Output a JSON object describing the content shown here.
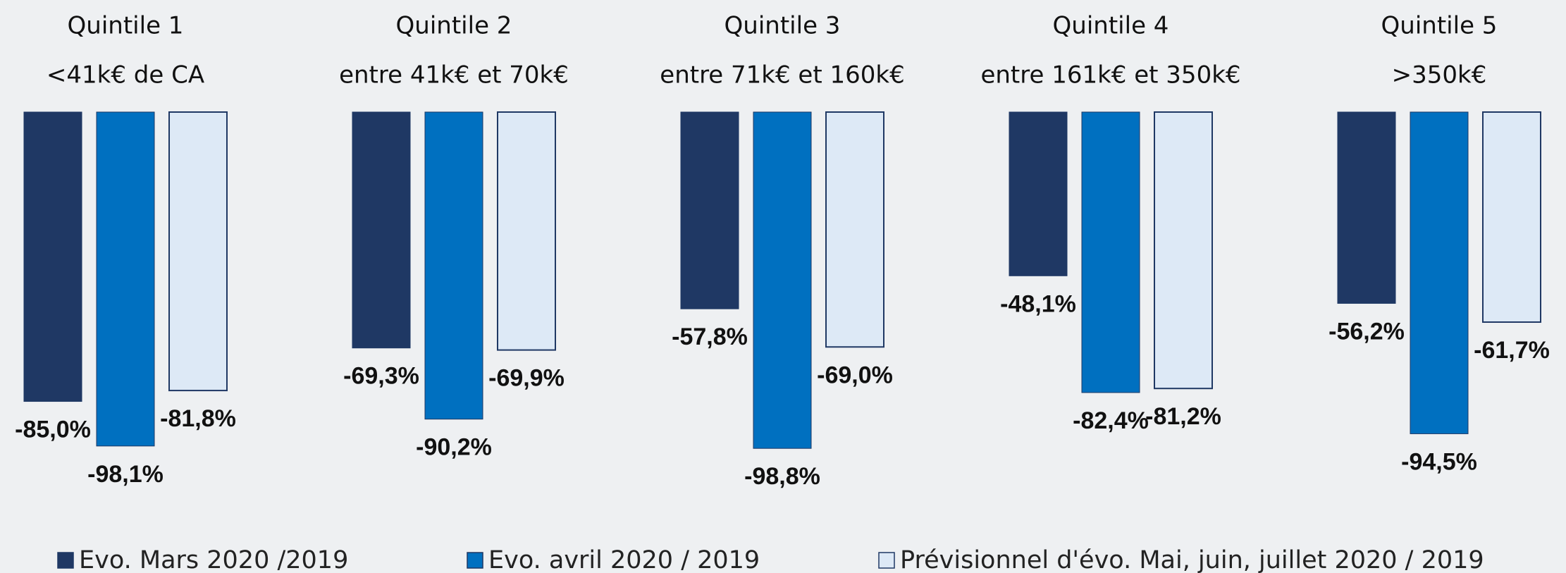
{
  "chart_data": {
    "type": "bar",
    "categories": [
      "Quintile 1",
      "Quintile 2",
      "Quintile 3",
      "Quintile 4",
      "Quintile 5"
    ],
    "category_ranges": [
      "<41k€ de CA",
      "entre 41k€  et 70k€",
      "entre 71k€ et 160k€",
      "entre 161k€ et 350k€",
      ">350k€"
    ],
    "ylim": [
      -100,
      0
    ],
    "series": [
      {
        "name": "Evo. Mars 2020 /2019",
        "color": "#1f3864",
        "values": [
          -85.0,
          -69.3,
          -57.8,
          -48.1,
          -56.2
        ],
        "value_labels": [
          "-85,0%",
          "-69,3%",
          "-57,8%",
          "-48,1%",
          "-56,2%"
        ]
      },
      {
        "name": "Evo. avril 2020 / 2019",
        "color": "#0070c0",
        "values": [
          -98.1,
          -90.2,
          -98.8,
          -82.4,
          -94.5
        ],
        "value_labels": [
          "-98,1%",
          "-90,2%",
          "-98,8%",
          "-82,4%",
          "-94,5%"
        ]
      },
      {
        "name": "Prévisionnel d'évo. Mai, juin, juillet 2020 / 2019",
        "color": "#dde9f6",
        "values": [
          -81.8,
          -69.9,
          -69.0,
          -81.2,
          -61.7
        ],
        "value_labels": [
          "-81,8%",
          "-69,9%",
          "-69,0%",
          "-81,2%",
          "-61,7%"
        ]
      }
    ]
  }
}
